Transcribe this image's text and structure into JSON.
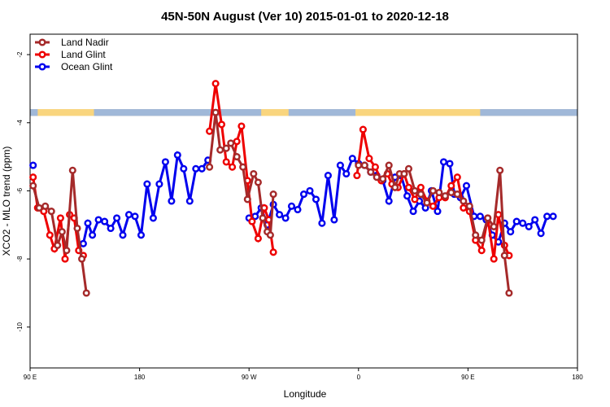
{
  "chart_data": {
    "type": "line",
    "title": "45N-50N August (Ver 10)   2015-01-01 to 2020-12-18",
    "xlabel": "Longitude",
    "ylabel": "XCO2 - MLO trend (ppm)",
    "xlim": [
      0,
      360
    ],
    "ylim": [
      -11.2,
      -1.4
    ],
    "x_ticks": [
      {
        "value": 0,
        "label": "90 E"
      },
      {
        "value": 72,
        "label": "180"
      },
      {
        "value": 144,
        "label": "90 W"
      },
      {
        "value": 216,
        "label": "0"
      },
      {
        "value": 288,
        "label": "90 E"
      },
      {
        "value": 360,
        "label": "180"
      }
    ],
    "y_ticks": [
      {
        "value": -2,
        "label": "-2"
      },
      {
        "value": -4,
        "label": "-4"
      },
      {
        "value": -6,
        "label": "-6"
      },
      {
        "value": -8,
        "label": "-8"
      },
      {
        "value": -10,
        "label": "-10"
      }
    ],
    "legend_position": "top-left",
    "land_ocean_band": {
      "y_range": [
        -3.8,
        -3.6
      ],
      "land_color": "#f9d57e",
      "ocean_color": "#a0b8d8",
      "ocean_x_ranges": [
        [
          0,
          5
        ],
        [
          42,
          152
        ],
        [
          170,
          214
        ],
        [
          296,
          360
        ]
      ]
    },
    "series": [
      {
        "name": "Land Nadir",
        "color": "#a52a2a",
        "points": [
          [
            2,
            -5.85
          ],
          [
            6,
            -6.5
          ],
          [
            10,
            -6.45
          ],
          [
            14,
            -6.6
          ],
          [
            18,
            -7.6
          ],
          [
            21,
            -7.2
          ],
          [
            24,
            -7.75
          ],
          [
            28,
            -5.4
          ],
          [
            31,
            -7.1
          ],
          [
            34,
            -8.0
          ],
          [
            37,
            -9.0
          ],
          [
            118,
            -5.3
          ],
          [
            122,
            -3.7
          ],
          [
            125,
            -4.8
          ],
          [
            129,
            -4.75
          ],
          [
            132,
            -4.6
          ],
          [
            136,
            -5.0
          ],
          [
            140,
            -5.3
          ],
          [
            143,
            -6.25
          ],
          [
            147,
            -5.5
          ],
          [
            150,
            -5.75
          ],
          [
            153,
            -6.8
          ],
          [
            156,
            -7.2
          ],
          [
            158,
            -7.3
          ],
          [
            160,
            -6.1
          ],
          [
            216,
            -5.25
          ],
          [
            220,
            -5.25
          ],
          [
            224,
            -5.45
          ],
          [
            228,
            -5.6
          ],
          [
            232,
            -5.65
          ],
          [
            236,
            -5.25
          ],
          [
            240,
            -5.9
          ],
          [
            243,
            -5.5
          ],
          [
            246,
            -5.5
          ],
          [
            249,
            -5.35
          ],
          [
            253,
            -6.0
          ],
          [
            257,
            -6.1
          ],
          [
            261,
            -6.35
          ],
          [
            265,
            -6.0
          ],
          [
            269,
            -6.05
          ],
          [
            273,
            -6.15
          ],
          [
            277,
            -6.05
          ],
          [
            281,
            -6.1
          ],
          [
            285,
            -6.3
          ],
          [
            289,
            -6.45
          ],
          [
            293,
            -7.3
          ],
          [
            297,
            -7.45
          ],
          [
            301,
            -6.8
          ],
          [
            305,
            -7.05
          ],
          [
            309,
            -5.4
          ],
          [
            312,
            -7.9
          ],
          [
            315,
            -9.0
          ]
        ]
      },
      {
        "name": "Land Glint",
        "color": "#ee0000",
        "points": [
          [
            2,
            -5.6
          ],
          [
            5,
            -6.5
          ],
          [
            9,
            -6.6
          ],
          [
            13,
            -7.3
          ],
          [
            16,
            -7.7
          ],
          [
            20,
            -6.8
          ],
          [
            23,
            -8.0
          ],
          [
            26,
            -6.7
          ],
          [
            29,
            -6.8
          ],
          [
            32,
            -7.75
          ],
          [
            35,
            -7.9
          ],
          [
            118,
            -4.25
          ],
          [
            122,
            -2.85
          ],
          [
            126,
            -4.05
          ],
          [
            129,
            -5.15
          ],
          [
            133,
            -5.3
          ],
          [
            136,
            -4.55
          ],
          [
            139,
            -4.1
          ],
          [
            143,
            -5.7
          ],
          [
            146,
            -6.9
          ],
          [
            150,
            -7.4
          ],
          [
            154,
            -6.5
          ],
          [
            157,
            -6.85
          ],
          [
            160,
            -7.8
          ],
          [
            215,
            -5.55
          ],
          [
            219,
            -4.2
          ],
          [
            223,
            -5.05
          ],
          [
            227,
            -5.3
          ],
          [
            231,
            -5.7
          ],
          [
            235,
            -5.5
          ],
          [
            238,
            -5.8
          ],
          [
            242,
            -5.9
          ],
          [
            246,
            -5.5
          ],
          [
            249,
            -5.9
          ],
          [
            253,
            -6.25
          ],
          [
            257,
            -5.9
          ],
          [
            261,
            -6.3
          ],
          [
            265,
            -6.45
          ],
          [
            269,
            -6.2
          ],
          [
            273,
            -6.2
          ],
          [
            277,
            -5.85
          ],
          [
            281,
            -5.6
          ],
          [
            285,
            -6.5
          ],
          [
            289,
            -6.6
          ],
          [
            293,
            -7.45
          ],
          [
            297,
            -7.75
          ],
          [
            301,
            -6.8
          ],
          [
            305,
            -8.0
          ],
          [
            308,
            -6.7
          ],
          [
            312,
            -7.6
          ],
          [
            315,
            -7.9
          ]
        ]
      },
      {
        "name": "Ocean Glint",
        "color": "#0000ee",
        "points": [
          [
            2,
            -5.25
          ],
          [
            35,
            -7.55
          ],
          [
            38,
            -6.95
          ],
          [
            41,
            -7.3
          ],
          [
            45,
            -6.85
          ],
          [
            49,
            -6.9
          ],
          [
            53,
            -7.1
          ],
          [
            57,
            -6.8
          ],
          [
            61,
            -7.3
          ],
          [
            65,
            -6.7
          ],
          [
            69,
            -6.75
          ],
          [
            73,
            -7.3
          ],
          [
            77,
            -5.8
          ],
          [
            81,
            -6.8
          ],
          [
            85,
            -5.8
          ],
          [
            89,
            -5.15
          ],
          [
            93,
            -6.3
          ],
          [
            97,
            -4.95
          ],
          [
            101,
            -5.35
          ],
          [
            105,
            -6.3
          ],
          [
            109,
            -5.35
          ],
          [
            113,
            -5.35
          ],
          [
            117,
            -5.1
          ],
          [
            144,
            -6.8
          ],
          [
            148,
            -6.75
          ],
          [
            152,
            -6.5
          ],
          [
            156,
            -7.0
          ],
          [
            160,
            -6.4
          ],
          [
            164,
            -6.7
          ],
          [
            168,
            -6.8
          ],
          [
            172,
            -6.45
          ],
          [
            176,
            -6.55
          ],
          [
            180,
            -6.1
          ],
          [
            184,
            -6.0
          ],
          [
            188,
            -6.25
          ],
          [
            192,
            -6.95
          ],
          [
            196,
            -5.55
          ],
          [
            200,
            -6.85
          ],
          [
            204,
            -5.25
          ],
          [
            208,
            -5.5
          ],
          [
            212,
            -5.05
          ],
          [
            216,
            -5.2
          ],
          [
            220,
            -5.25
          ],
          [
            224,
            -5.45
          ],
          [
            228,
            -5.55
          ],
          [
            232,
            -5.7
          ],
          [
            236,
            -6.3
          ],
          [
            240,
            -5.6
          ],
          [
            244,
            -5.55
          ],
          [
            248,
            -6.15
          ],
          [
            252,
            -6.6
          ],
          [
            256,
            -6.3
          ],
          [
            260,
            -6.5
          ],
          [
            264,
            -6.0
          ],
          [
            268,
            -6.6
          ],
          [
            272,
            -5.15
          ],
          [
            276,
            -5.2
          ],
          [
            279,
            -6.1
          ],
          [
            283,
            -6.2
          ],
          [
            287,
            -5.85
          ],
          [
            292,
            -6.75
          ],
          [
            296,
            -6.75
          ],
          [
            300,
            -6.85
          ],
          [
            304,
            -7.3
          ],
          [
            308,
            -7.5
          ],
          [
            312,
            -6.95
          ],
          [
            316,
            -7.2
          ],
          [
            320,
            -6.9
          ],
          [
            324,
            -6.95
          ],
          [
            328,
            -7.05
          ],
          [
            332,
            -6.85
          ],
          [
            336,
            -7.25
          ],
          [
            340,
            -6.75
          ],
          [
            344,
            -6.75
          ]
        ]
      }
    ]
  }
}
